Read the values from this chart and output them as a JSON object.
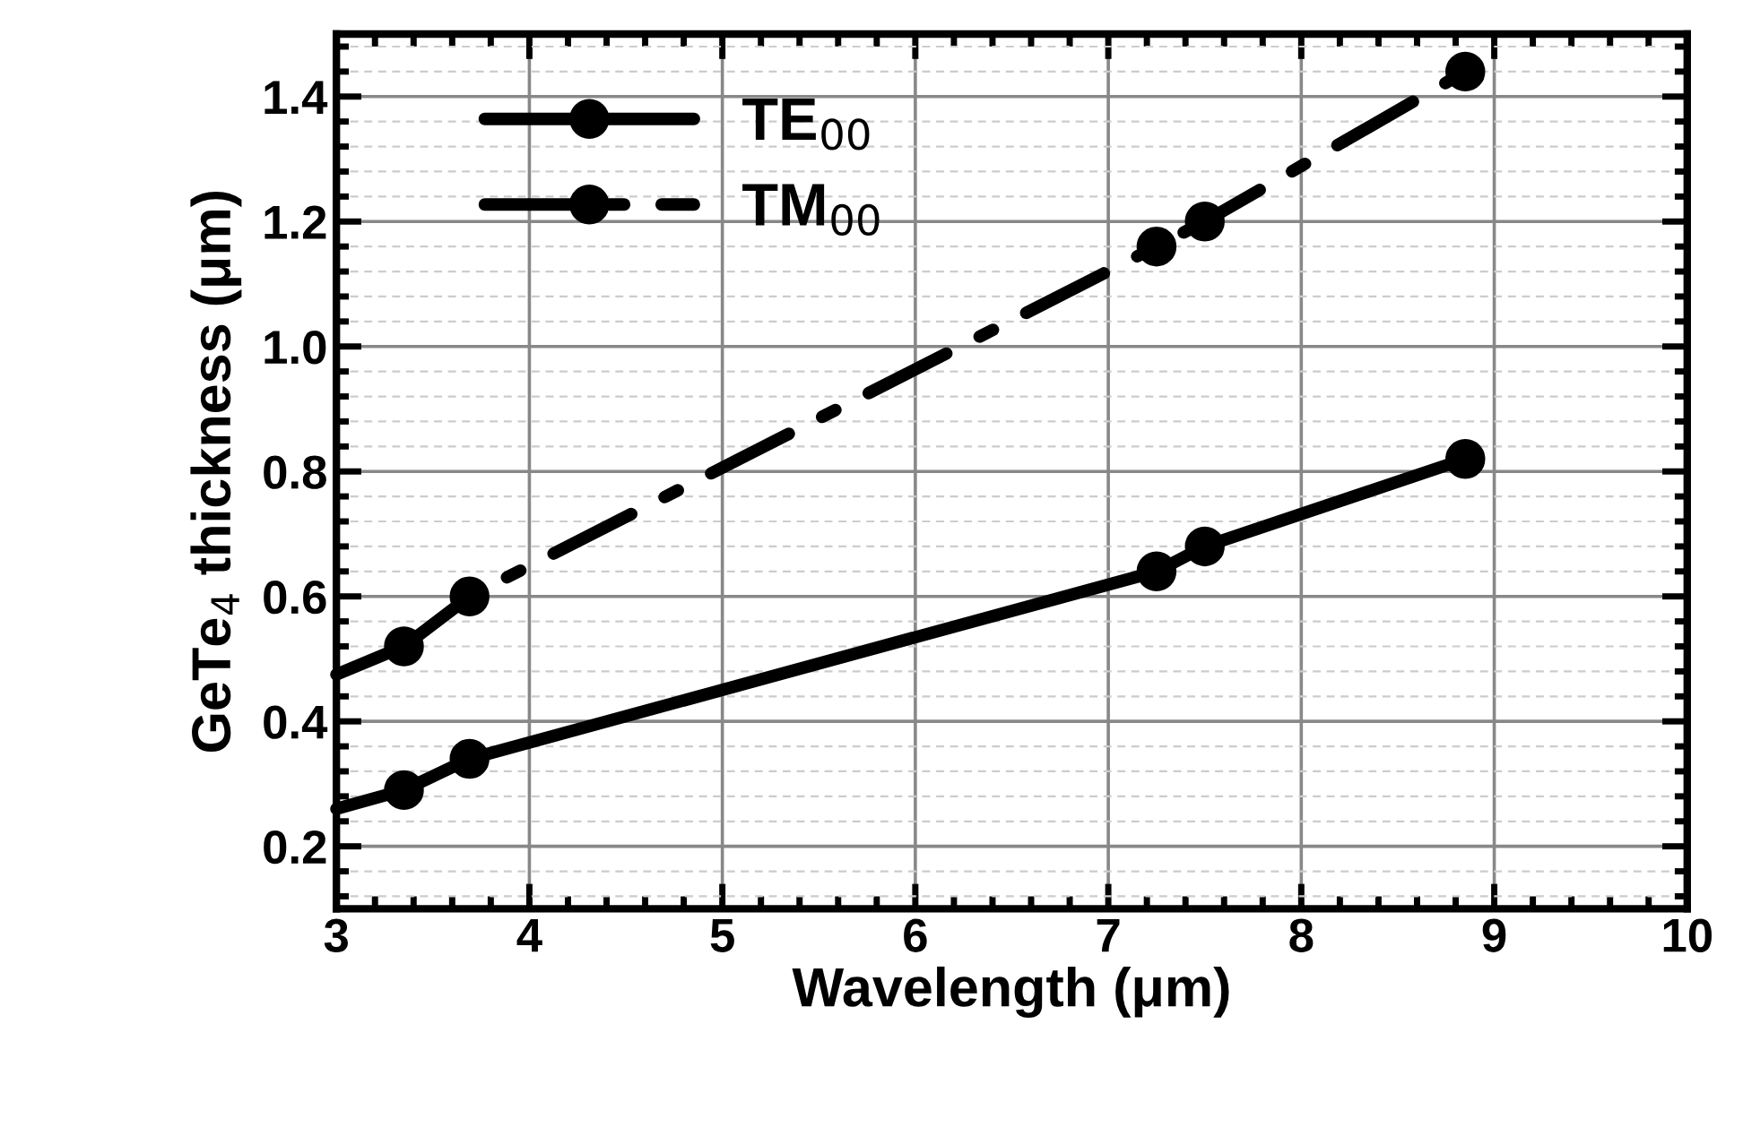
{
  "chart_data": {
    "type": "line",
    "xlabel": "Wavelength (μm)",
    "ylabel": "GeTe$_{4}$ thickness (μm)",
    "xlim": [
      3,
      10
    ],
    "ylim": [
      0.1,
      1.5
    ],
    "xticks": [
      3,
      4,
      5,
      6,
      7,
      8,
      9,
      10
    ],
    "yticks": [
      {
        "value": 0.2,
        "label": "0.2"
      },
      {
        "value": 0.4,
        "label": "0.4"
      },
      {
        "value": 0.6,
        "label": "0.6"
      },
      {
        "value": 0.8,
        "label": "0.8"
      },
      {
        "value": 1,
        "label": "1.0"
      },
      {
        "value": 1.2,
        "label": "1.2"
      },
      {
        "value": 1.4,
        "label": "1.4"
      }
    ],
    "grid": true,
    "legend": "top left",
    "marker": "circle",
    "series": [
      {
        "name": "TE$_{00}$",
        "color": "#000000",
        "line_style": "solid",
        "x": [
          3.35,
          3.69,
          7.25,
          7.5,
          8.85
        ],
        "values": [
          0.29,
          0.34,
          0.64,
          0.68,
          0.82
        ]
      },
      {
        "name": "TM$_{00}$",
        "color": "#000000",
        "line_style": "dashdot",
        "x": [
          3.35,
          3.69,
          7.25,
          7.5,
          8.85
        ],
        "values": [
          0.52,
          0.6,
          1.16,
          1.2,
          1.44
        ]
      },
      {
        "color": "#000000",
        "line_style": "solid",
        "marker": "none",
        "x": [
          3,
          3.35
        ],
        "values": [
          0.26,
          0.29
        ]
      },
      {
        "color": "#000000",
        "line_style": "dashdot",
        "marker": "none",
        "x": [
          3,
          3.35
        ],
        "values": [
          0.475,
          0.52
        ]
      }
    ]
  }
}
